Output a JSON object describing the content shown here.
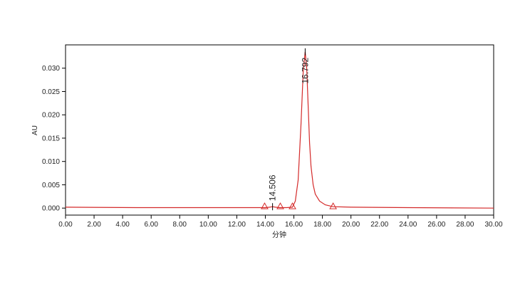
{
  "chart_data": {
    "type": "line",
    "xlabel": "分钟",
    "ylabel": "AU",
    "xlim": [
      0,
      30
    ],
    "ylim": [
      -0.0015,
      0.035
    ],
    "xticks": [
      {
        "value": 0,
        "label": "0.00"
      },
      {
        "value": 2,
        "label": "2.00"
      },
      {
        "value": 4,
        "label": "4.00"
      },
      {
        "value": 6,
        "label": "6.00"
      },
      {
        "value": 8,
        "label": "8.00"
      },
      {
        "value": 10,
        "label": "10.00"
      },
      {
        "value": 12,
        "label": "12.00"
      },
      {
        "value": 14,
        "label": "14.00"
      },
      {
        "value": 16,
        "label": "16.00"
      },
      {
        "value": 18,
        "label": "18.00"
      },
      {
        "value": 20,
        "label": "20.00"
      },
      {
        "value": 22,
        "label": "22.00"
      },
      {
        "value": 24,
        "label": "24.00"
      },
      {
        "value": 26,
        "label": "26.00"
      },
      {
        "value": 28,
        "label": "28.00"
      },
      {
        "value": 30,
        "label": "30.00"
      }
    ],
    "yticks": [
      {
        "value": 0,
        "label": "0.000"
      },
      {
        "value": 0.005,
        "label": "0.005"
      },
      {
        "value": 0.01,
        "label": "0.010"
      },
      {
        "value": 0.015,
        "label": "0.015"
      },
      {
        "value": 0.02,
        "label": "0.020"
      },
      {
        "value": 0.025,
        "label": "0.025"
      },
      {
        "value": 0.03,
        "label": "0.030"
      }
    ],
    "series": [
      {
        "color": "#d42a2a",
        "x": [
          0,
          5,
          10,
          13,
          14,
          14.3,
          14.506,
          14.7,
          15,
          15.5,
          15.9,
          16.1,
          16.3,
          16.5,
          16.65,
          16.792,
          16.9,
          17.0,
          17.1,
          17.2,
          17.35,
          17.5,
          17.8,
          18.2,
          18.75,
          20,
          24,
          30
        ],
        "values": [
          0.0002,
          0.0001,
          0.0001,
          0.0001,
          0.0001,
          0.0002,
          0.0003,
          0.0002,
          0.0001,
          0.0001,
          0.0002,
          0.0015,
          0.006,
          0.018,
          0.029,
          0.0335,
          0.03,
          0.022,
          0.014,
          0.009,
          0.005,
          0.003,
          0.0015,
          0.0007,
          0.0003,
          0.0002,
          0.0001,
          0
        ]
      }
    ],
    "peaks": [
      {
        "x": 14.506,
        "y": 0.0003
      },
      {
        "x": 16.792,
        "y": 0.0335
      }
    ],
    "baseline_marks": [
      13.95,
      15.05,
      15.9,
      18.75
    ]
  }
}
